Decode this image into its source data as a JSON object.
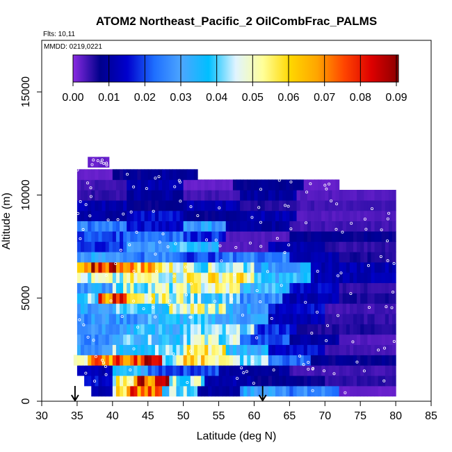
{
  "chart_data": {
    "type": "heatmap",
    "title": "ATOM2 Northeast_Pacific_2 OilCombFrac_PALMS",
    "annotations": [
      "Flts: 10,11",
      "MMDD: 0219,0221"
    ],
    "xlabel": "Latitude (deg N)",
    "ylabel": "Altitude (m)",
    "xlim": [
      30,
      85
    ],
    "ylim": [
      0,
      17500
    ],
    "x_ticks": [
      "30",
      "35",
      "40",
      "45",
      "50",
      "55",
      "60",
      "65",
      "70",
      "75",
      "80",
      "85"
    ],
    "y_ticks": [
      "0",
      "5000",
      "10000",
      "15000"
    ],
    "colorbar": {
      "range": [
        0,
        0.09
      ],
      "ticks": [
        "0.00",
        "0.01",
        "0.02",
        "0.03",
        "0.04",
        "0.05",
        "0.06",
        "0.07",
        "0.08",
        "0.09"
      ],
      "colors": [
        "#8a2be2",
        "#00008b",
        "#0000cd",
        "#1e6fff",
        "#4da6ff",
        "#00bfff",
        "#e0f4ff",
        "#ffff99",
        "#ffd700",
        "#ffa500",
        "#ff4500",
        "#dd0000",
        "#8b0000"
      ]
    },
    "markers": [
      {
        "type": "arrow-down",
        "x": 34.7,
        "y": 0
      },
      {
        "type": "arrow-down",
        "x": 61.2,
        "y": 0
      }
    ],
    "rows": [
      {
        "alt": 500,
        "segments": [
          [
            37,
            40,
            0.012
          ],
          [
            40,
            42,
            0.055
          ],
          [
            42,
            47,
            0.075
          ],
          [
            47,
            52,
            0.04
          ],
          [
            52,
            58,
            0.01
          ],
          [
            58,
            65,
            0.03
          ],
          [
            65,
            72,
            0.025
          ],
          [
            72,
            80,
            0.002
          ]
        ]
      },
      {
        "alt": 1000,
        "segments": [
          [
            36,
            40,
            0.015
          ],
          [
            40,
            43,
            0.05
          ],
          [
            43,
            48,
            0.078
          ],
          [
            48,
            53,
            0.045
          ],
          [
            53,
            60,
            0.012
          ],
          [
            60,
            70,
            0.008
          ],
          [
            70,
            80,
            0.005
          ]
        ]
      },
      {
        "alt": 1500,
        "segments": [
          [
            35,
            40,
            0.012
          ],
          [
            40,
            45,
            0.035
          ],
          [
            45,
            55,
            0.02
          ],
          [
            55,
            65,
            0.01
          ],
          [
            65,
            80,
            0.004
          ]
        ]
      },
      {
        "alt": 2000,
        "segments": [
          [
            34.5,
            37,
            0.055
          ],
          [
            37,
            43,
            0.07
          ],
          [
            43,
            47,
            0.08
          ],
          [
            47,
            50,
            0.045
          ],
          [
            50,
            56,
            0.058
          ],
          [
            56,
            62,
            0.045
          ],
          [
            62,
            68,
            0.025
          ],
          [
            68,
            80,
            0.008
          ]
        ]
      },
      {
        "alt": 2500,
        "segments": [
          [
            35,
            40,
            0.03
          ],
          [
            40,
            50,
            0.04
          ],
          [
            50,
            56,
            0.055
          ],
          [
            56,
            62,
            0.035
          ],
          [
            62,
            70,
            0.015
          ],
          [
            70,
            80,
            0.004
          ]
        ]
      },
      {
        "alt": 3000,
        "segments": [
          [
            35,
            40,
            0.025
          ],
          [
            40,
            50,
            0.038
          ],
          [
            50,
            58,
            0.045
          ],
          [
            58,
            65,
            0.02
          ],
          [
            65,
            72,
            0.01
          ],
          [
            72,
            80,
            0.003
          ]
        ]
      },
      {
        "alt": 3500,
        "segments": [
          [
            35,
            42,
            0.03
          ],
          [
            42,
            50,
            0.035
          ],
          [
            50,
            60,
            0.04
          ],
          [
            60,
            66,
            0.018
          ],
          [
            66,
            80,
            0.006
          ]
        ]
      },
      {
        "alt": 4000,
        "segments": [
          [
            35,
            45,
            0.028
          ],
          [
            45,
            55,
            0.035
          ],
          [
            55,
            62,
            0.03
          ],
          [
            62,
            70,
            0.012
          ],
          [
            70,
            80,
            0.005
          ]
        ]
      },
      {
        "alt": 4500,
        "segments": [
          [
            35,
            40,
            0.03
          ],
          [
            40,
            48,
            0.04
          ],
          [
            48,
            56,
            0.048
          ],
          [
            56,
            62,
            0.03
          ],
          [
            62,
            70,
            0.015
          ],
          [
            70,
            80,
            0.004
          ]
        ]
      },
      {
        "alt": 5000,
        "segments": [
          [
            35,
            38,
            0.04
          ],
          [
            38,
            42,
            0.075
          ],
          [
            42,
            50,
            0.05
          ],
          [
            50,
            58,
            0.04
          ],
          [
            58,
            64,
            0.025
          ],
          [
            64,
            72,
            0.012
          ],
          [
            72,
            80,
            0.006
          ]
        ]
      },
      {
        "alt": 5500,
        "segments": [
          [
            35,
            40,
            0.03
          ],
          [
            40,
            50,
            0.045
          ],
          [
            50,
            58,
            0.05
          ],
          [
            58,
            65,
            0.035
          ],
          [
            65,
            72,
            0.015
          ],
          [
            72,
            80,
            0.005
          ]
        ]
      },
      {
        "alt": 6000,
        "segments": [
          [
            35,
            42,
            0.045
          ],
          [
            42,
            50,
            0.05
          ],
          [
            50,
            60,
            0.055
          ],
          [
            60,
            68,
            0.035
          ],
          [
            68,
            80,
            0.012
          ]
        ]
      },
      {
        "alt": 6500,
        "segments": [
          [
            35,
            37,
            0.06
          ],
          [
            37,
            42,
            0.08
          ],
          [
            42,
            47,
            0.065
          ],
          [
            47,
            52,
            0.05
          ],
          [
            52,
            60,
            0.045
          ],
          [
            60,
            68,
            0.03
          ],
          [
            68,
            80,
            0.012
          ]
        ]
      },
      {
        "alt": 7000,
        "segments": [
          [
            35,
            42,
            0.03
          ],
          [
            42,
            50,
            0.025
          ],
          [
            50,
            56,
            0.02
          ],
          [
            56,
            65,
            0.025
          ],
          [
            65,
            72,
            0.012
          ],
          [
            72,
            80,
            0.006
          ]
        ]
      },
      {
        "alt": 7500,
        "segments": [
          [
            35,
            42,
            0.018
          ],
          [
            42,
            48,
            0.03
          ],
          [
            48,
            55,
            0.035
          ],
          [
            55,
            62,
            0.003
          ],
          [
            62,
            70,
            0.012
          ],
          [
            70,
            80,
            0.005
          ]
        ]
      },
      {
        "alt": 8000,
        "segments": [
          [
            35,
            42,
            0.02
          ],
          [
            42,
            50,
            0.025
          ],
          [
            50,
            56,
            0.018
          ],
          [
            56,
            65,
            0.003
          ],
          [
            65,
            80,
            0.008
          ]
        ]
      },
      {
        "alt": 8500,
        "segments": [
          [
            35,
            42,
            0.025
          ],
          [
            42,
            50,
            0.015
          ],
          [
            50,
            56,
            0.03
          ],
          [
            56,
            65,
            0.01
          ],
          [
            65,
            80,
            0.004
          ]
        ]
      },
      {
        "alt": 9000,
        "segments": [
          [
            35,
            42,
            0.01
          ],
          [
            42,
            50,
            0.015
          ],
          [
            50,
            58,
            0.008
          ],
          [
            58,
            66,
            0.012
          ],
          [
            66,
            80,
            0.003
          ]
        ]
      },
      {
        "alt": 9500,
        "segments": [
          [
            35,
            42,
            0.012
          ],
          [
            42,
            50,
            0.008
          ],
          [
            50,
            58,
            0.012
          ],
          [
            58,
            66,
            0.006
          ],
          [
            66,
            80,
            0.004
          ]
        ]
      },
      {
        "alt": 10000,
        "segments": [
          [
            35,
            42,
            0.005
          ],
          [
            42,
            50,
            0.01
          ],
          [
            50,
            58,
            0.004
          ],
          [
            58,
            66,
            0.01
          ],
          [
            66,
            80,
            0.003
          ]
        ]
      },
      {
        "alt": 10500,
        "segments": [
          [
            35,
            42,
            0.004
          ],
          [
            42,
            50,
            0.012
          ],
          [
            50,
            57,
            0.002
          ],
          [
            57,
            67,
            0.008
          ],
          [
            67,
            72,
            0.002
          ]
        ]
      },
      {
        "alt": 11000,
        "segments": [
          [
            35,
            40,
            0.002
          ],
          [
            40,
            47,
            0.008
          ],
          [
            47,
            52,
            0.01
          ]
        ]
      },
      {
        "alt": 11600,
        "segments": [
          [
            36.5,
            39.5,
            0.002
          ]
        ]
      }
    ]
  }
}
